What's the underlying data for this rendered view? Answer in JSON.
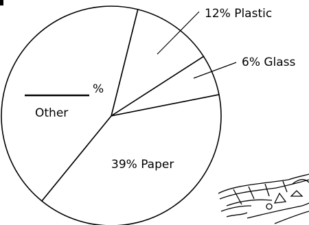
{
  "chart_data": {
    "type": "pie",
    "slices": [
      {
        "label": "Plastic",
        "value": 12,
        "display": "12% Plastic"
      },
      {
        "label": "Glass",
        "value": 6,
        "display": "6% Glass"
      },
      {
        "label": "Paper",
        "value": 39,
        "display": "39% Paper"
      },
      {
        "label": "Other",
        "value": null,
        "display_percent": "%",
        "display_name": "Other"
      }
    ],
    "colors": {
      "fill": "#ffffff",
      "stroke": "#000000"
    }
  }
}
